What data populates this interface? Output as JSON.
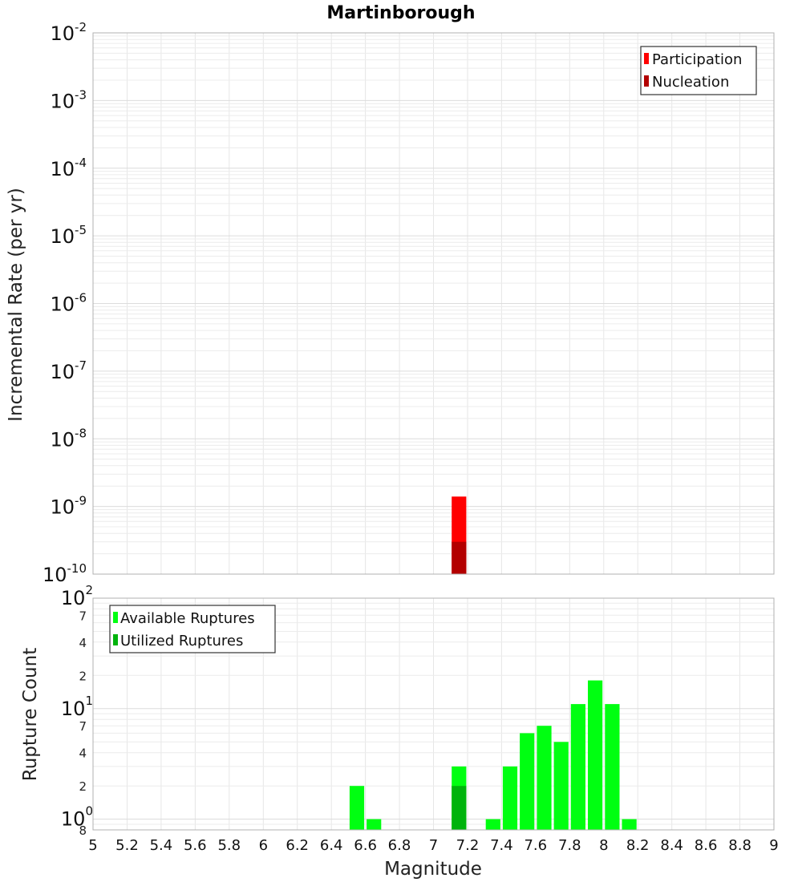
{
  "chart_data": [
    {
      "type": "bar",
      "title": "Martinborough",
      "xlabel": "Magnitude",
      "ylabel": "Incremental Rate (per yr)",
      "yscale": "log",
      "ylim": [
        1e-10,
        0.01
      ],
      "xlim": [
        5,
        9
      ],
      "bin_width": 0.1,
      "y_tick_labels": [
        {
          "base": "10",
          "exp": "-2",
          "value": 0.01
        },
        {
          "base": "10",
          "exp": "-3",
          "value": 0.001
        },
        {
          "base": "10",
          "exp": "-4",
          "value": 0.0001
        },
        {
          "base": "10",
          "exp": "-5",
          "value": 1e-05
        },
        {
          "base": "10",
          "exp": "-6",
          "value": 1e-06
        },
        {
          "base": "10",
          "exp": "-7",
          "value": 1e-07
        },
        {
          "base": "10",
          "exp": "-8",
          "value": 1e-08
        },
        {
          "base": "10",
          "exp": "-9",
          "value": 1e-09
        },
        {
          "base": "10",
          "exp": "-10",
          "value": 1e-10
        }
      ],
      "legend_position": "top-right",
      "series": [
        {
          "name": "Participation",
          "color": "#ff0000",
          "x": [
            7.15
          ],
          "values": [
            1.4e-09
          ]
        },
        {
          "name": "Nucleation",
          "color": "#b30000",
          "x": [
            7.15
          ],
          "values": [
            3e-10
          ]
        }
      ],
      "grid": true
    },
    {
      "type": "bar",
      "xlabel": "Magnitude",
      "ylabel": "Rupture Count",
      "yscale": "log",
      "ylim": [
        0.8,
        100
      ],
      "xlim": [
        5,
        9
      ],
      "bin_width": 0.1,
      "x_tick_labels": [
        "5",
        "5.2",
        "5.4",
        "5.6",
        "5.8",
        "6",
        "6.2",
        "6.4",
        "6.6",
        "6.8",
        "7",
        "7.2",
        "7.4",
        "7.6",
        "7.8",
        "8",
        "8.2",
        "8.4",
        "8.6",
        "8.8",
        "9"
      ],
      "y_major_tick_labels": [
        {
          "base": "10",
          "exp": "2",
          "value": 100
        },
        {
          "base": "10",
          "exp": "1",
          "value": 10
        },
        {
          "base": "10",
          "exp": "0",
          "value": 1
        }
      ],
      "y_minor_tick_labels": [
        {
          "label": "7",
          "value": 70
        },
        {
          "label": "4",
          "value": 40
        },
        {
          "label": "2",
          "value": 20
        },
        {
          "label": "7",
          "value": 7
        },
        {
          "label": "4",
          "value": 4
        },
        {
          "label": "2",
          "value": 2
        },
        {
          "label": "8",
          "value": 0.8
        }
      ],
      "legend_position": "top-left",
      "series": [
        {
          "name": "Available Ruptures",
          "color": "#00ff11",
          "x": [
            6.55,
            6.65,
            7.15,
            7.35,
            7.45,
            7.55,
            7.65,
            7.75,
            7.85,
            7.95,
            8.05,
            8.15
          ],
          "values": [
            2,
            1,
            3,
            1,
            3,
            6,
            7,
            5,
            11,
            18,
            11,
            1
          ]
        },
        {
          "name": "Utilized Ruptures",
          "color": "#00b30c",
          "x": [
            7.15
          ],
          "values": [
            2
          ]
        }
      ],
      "grid": true
    }
  ]
}
